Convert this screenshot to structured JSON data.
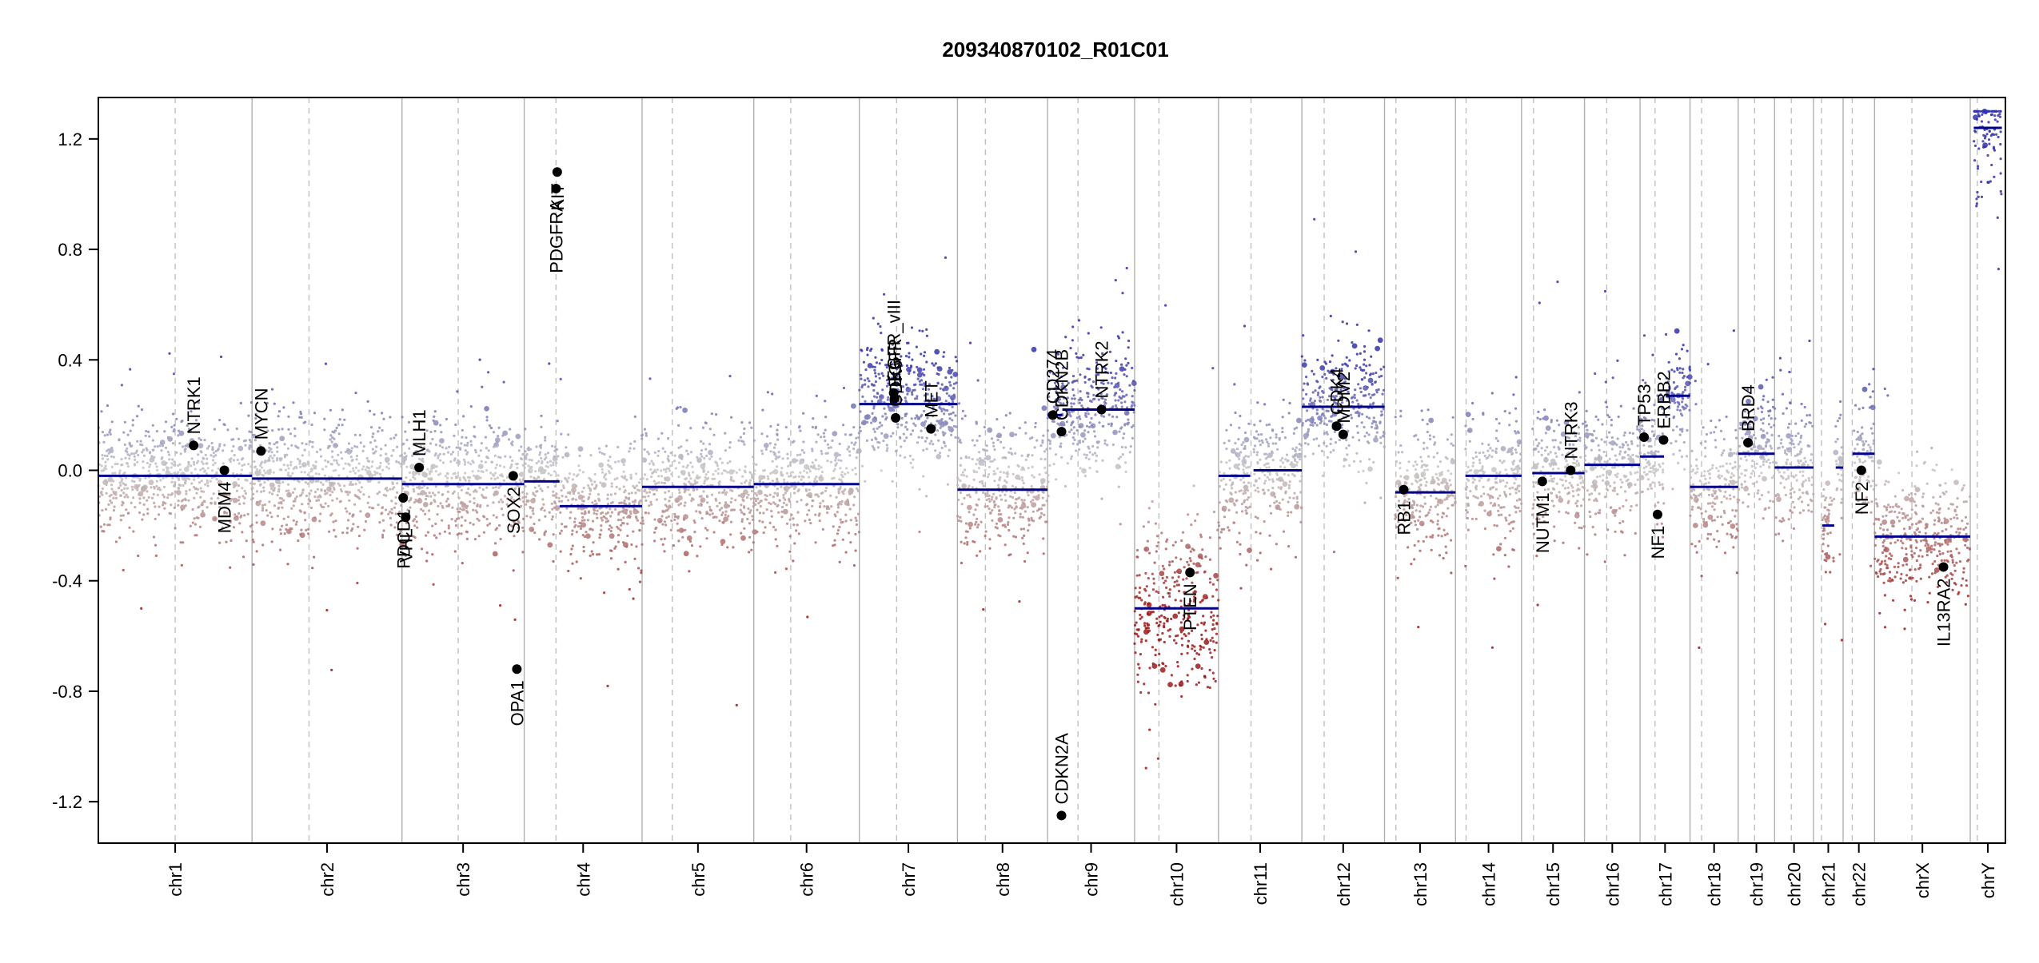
{
  "chart_data": {
    "type": "scatter",
    "title": "209340870102_R01C01",
    "xlabel": "",
    "ylabel": "",
    "ylim": [
      -1.35,
      1.35
    ],
    "yticks": [
      "-1.2",
      "-0.8",
      "-0.4",
      "0.0",
      "0.4",
      "0.8",
      "1.2"
    ],
    "grid": false,
    "colors": {
      "segment": "#00008b",
      "gain": "#3333aa",
      "neutral": "#c8c8c8",
      "loss": "#9b1b1b",
      "boundary": "#b0b0b0",
      "centromere": "#c0c0c0",
      "gene_marker": "#000000"
    },
    "chromosomes": [
      {
        "name": "chr1",
        "label": "chr1",
        "length": 249,
        "centromere": 0.5,
        "segments": [
          {
            "start": 0,
            "end": 1,
            "value": -0.02
          }
        ]
      },
      {
        "name": "chr2",
        "label": "chr2",
        "length": 243,
        "centromere": 0.38,
        "segments": [
          {
            "start": 0,
            "end": 1,
            "value": -0.03
          }
        ]
      },
      {
        "name": "chr3",
        "label": "chr3",
        "length": 198,
        "centromere": 0.46,
        "segments": [
          {
            "start": 0,
            "end": 1,
            "value": -0.05
          }
        ]
      },
      {
        "name": "chr4",
        "label": "chr4",
        "length": 191,
        "centromere": 0.27,
        "segments": [
          {
            "start": 0,
            "end": 0.3,
            "value": -0.04
          },
          {
            "start": 0.3,
            "end": 1,
            "value": -0.13
          }
        ]
      },
      {
        "name": "chr5",
        "label": "chr5",
        "length": 181,
        "centromere": 0.27,
        "segments": [
          {
            "start": 0,
            "end": 1,
            "value": -0.06
          }
        ]
      },
      {
        "name": "chr6",
        "label": "chr6",
        "length": 171,
        "centromere": 0.35,
        "segments": [
          {
            "start": 0,
            "end": 1,
            "value": -0.05
          }
        ]
      },
      {
        "name": "chr7",
        "label": "chr7",
        "length": 159,
        "centromere": 0.38,
        "segments": [
          {
            "start": 0,
            "end": 1,
            "value": 0.24
          }
        ]
      },
      {
        "name": "chr8",
        "label": "chr8",
        "length": 146,
        "centromere": 0.31,
        "segments": [
          {
            "start": 0,
            "end": 1,
            "value": -0.07
          }
        ]
      },
      {
        "name": "chr9",
        "label": "chr9",
        "length": 141,
        "centromere": 0.35,
        "segments": [
          {
            "start": 0,
            "end": 0.17,
            "value": 0.2
          },
          {
            "start": 0.17,
            "end": 1,
            "value": 0.22
          }
        ]
      },
      {
        "name": "chr10",
        "label": "chr10",
        "length": 136,
        "centromere": 0.29,
        "segments": [
          {
            "start": 0,
            "end": 1,
            "value": -0.5
          }
        ]
      },
      {
        "name": "chr11",
        "label": "chr11",
        "length": 135,
        "centromere": 0.39,
        "segments": [
          {
            "start": 0,
            "end": 0.38,
            "value": -0.02
          },
          {
            "start": 0.42,
            "end": 1,
            "value": 0.0
          }
        ]
      },
      {
        "name": "chr12",
        "label": "chr12",
        "length": 134,
        "centromere": 0.27,
        "segments": [
          {
            "start": 0,
            "end": 1,
            "value": 0.23
          }
        ]
      },
      {
        "name": "chr13",
        "label": "chr13",
        "length": 115,
        "centromere": 0.16,
        "segments": [
          {
            "start": 0.15,
            "end": 1,
            "value": -0.08
          }
        ]
      },
      {
        "name": "chr14",
        "label": "chr14",
        "length": 107,
        "centromere": 0.16,
        "segments": [
          {
            "start": 0.15,
            "end": 1,
            "value": -0.02
          }
        ]
      },
      {
        "name": "chr15",
        "label": "chr15",
        "length": 102,
        "centromere": 0.19,
        "segments": [
          {
            "start": 0.17,
            "end": 1,
            "value": -0.01
          }
        ]
      },
      {
        "name": "chr16",
        "label": "chr16",
        "length": 90,
        "centromere": 0.4,
        "segments": [
          {
            "start": 0,
            "end": 1,
            "value": 0.02
          }
        ]
      },
      {
        "name": "chr17",
        "label": "chr17",
        "length": 81,
        "centromere": 0.3,
        "segments": [
          {
            "start": 0,
            "end": 0.48,
            "value": 0.05
          },
          {
            "start": 0.52,
            "end": 1,
            "value": 0.27
          }
        ]
      },
      {
        "name": "chr18",
        "label": "chr18",
        "length": 78,
        "centromere": 0.24,
        "segments": [
          {
            "start": 0,
            "end": 1,
            "value": -0.06
          }
        ]
      },
      {
        "name": "chr19",
        "label": "chr19",
        "length": 59,
        "centromere": 0.45,
        "segments": [
          {
            "start": 0,
            "end": 1,
            "value": 0.06
          }
        ]
      },
      {
        "name": "chr20",
        "label": "chr20",
        "length": 63,
        "centromere": 0.43,
        "segments": [
          {
            "start": 0,
            "end": 1,
            "value": 0.01
          }
        ]
      },
      {
        "name": "chr21",
        "label": "chr21",
        "length": 48,
        "centromere": 0.27,
        "segments": [
          {
            "start": 0.3,
            "end": 0.7,
            "value": -0.2
          },
          {
            "start": 0.75,
            "end": 1,
            "value": 0.01
          }
        ]
      },
      {
        "name": "chr22",
        "label": "chr22",
        "length": 51,
        "centromere": 0.29,
        "segments": [
          {
            "start": 0.3,
            "end": 1,
            "value": 0.06
          }
        ]
      },
      {
        "name": "chrX",
        "label": "chrX",
        "length": 155,
        "centromere": 0.39,
        "segments": [
          {
            "start": 0,
            "end": 1,
            "value": -0.24
          }
        ]
      },
      {
        "name": "chrY",
        "label": "chrY",
        "length": 57,
        "centromere": 0.2,
        "segments": [
          {
            "start": 0.1,
            "end": 0.9,
            "value": 1.24
          }
        ]
      }
    ],
    "genes": [
      {
        "name": "NTRK1",
        "chr": "chr1",
        "pos": 0.62,
        "value": 0.09,
        "label_side": "above"
      },
      {
        "name": "MDM4",
        "chr": "chr1",
        "pos": 0.82,
        "value": 0.0,
        "label_side": "below"
      },
      {
        "name": "MYCN",
        "chr": "chr2",
        "pos": 0.06,
        "value": 0.07,
        "label_side": "above"
      },
      {
        "name": "PDGFRA",
        "chr": "chr4",
        "pos": 0.27,
        "value": 1.02,
        "label_side": "below"
      },
      {
        "name": "KIT",
        "chr": "chr4",
        "pos": 0.28,
        "value": 1.08,
        "label_side": "below"
      },
      {
        "name": "VHL",
        "chr": "chr3",
        "pos": 0.03,
        "value": -0.17,
        "label_side": "below"
      },
      {
        "name": "PDCD1",
        "chr": "chr3",
        "pos": 0.01,
        "value": -0.1,
        "label_side": "below"
      },
      {
        "name": "MLH1",
        "chr": "chr3",
        "pos": 0.14,
        "value": 0.01,
        "label_side": "above"
      },
      {
        "name": "SOX2",
        "chr": "chr3",
        "pos": 0.91,
        "value": -0.02,
        "label_side": "below"
      },
      {
        "name": "OPA1",
        "chr": "chr3",
        "pos": 0.94,
        "value": -0.72,
        "label_side": "below"
      },
      {
        "name": "EGFR_vIII",
        "chr": "chr7",
        "pos": 0.35,
        "value": 0.28,
        "label_side": "above"
      },
      {
        "name": "EGFR",
        "chr": "chr7",
        "pos": 0.36,
        "value": 0.26,
        "label_side": "above"
      },
      {
        "name": "CDK6",
        "chr": "chr7",
        "pos": 0.37,
        "value": 0.19,
        "label_side": "above"
      },
      {
        "name": "MET",
        "chr": "chr7",
        "pos": 0.73,
        "value": 0.15,
        "label_side": "above"
      },
      {
        "name": "CD274",
        "chr": "chr9",
        "pos": 0.06,
        "value": 0.2,
        "label_side": "above"
      },
      {
        "name": "CDKN2A",
        "chr": "chr9",
        "pos": 0.16,
        "value": -1.25,
        "label_side": "above"
      },
      {
        "name": "CDKN2B",
        "chr": "chr9",
        "pos": 0.16,
        "value": 0.14,
        "label_side": "above"
      },
      {
        "name": "NTRK2",
        "chr": "chr9",
        "pos": 0.62,
        "value": 0.22,
        "label_side": "above"
      },
      {
        "name": "PTEN",
        "chr": "chr10",
        "pos": 0.66,
        "value": -0.37,
        "label_side": "below"
      },
      {
        "name": "CDK4",
        "chr": "chr12",
        "pos": 0.42,
        "value": 0.16,
        "label_side": "above"
      },
      {
        "name": "MDM2",
        "chr": "chr12",
        "pos": 0.5,
        "value": 0.13,
        "label_side": "above"
      },
      {
        "name": "RB1",
        "chr": "chr13",
        "pos": 0.27,
        "value": -0.07,
        "label_side": "below"
      },
      {
        "name": "NUTM1",
        "chr": "chr15",
        "pos": 0.33,
        "value": -0.04,
        "label_side": "below"
      },
      {
        "name": "NTRK3",
        "chr": "chr15",
        "pos": 0.78,
        "value": 0.0,
        "label_side": "above"
      },
      {
        "name": "TP53",
        "chr": "chr17",
        "pos": 0.08,
        "value": 0.12,
        "label_side": "above"
      },
      {
        "name": "NF1",
        "chr": "chr17",
        "pos": 0.35,
        "value": -0.16,
        "label_side": "below"
      },
      {
        "name": "ERBB2",
        "chr": "chr17",
        "pos": 0.47,
        "value": 0.11,
        "label_side": "above"
      },
      {
        "name": "BRD4",
        "chr": "chr19",
        "pos": 0.27,
        "value": 0.1,
        "label_side": "above"
      },
      {
        "name": "NF2",
        "chr": "chr22",
        "pos": 0.58,
        "value": 0.0,
        "label_side": "below"
      },
      {
        "name": "IL13RA2",
        "chr": "chrX",
        "pos": 0.72,
        "value": -0.35,
        "label_side": "below"
      }
    ]
  }
}
